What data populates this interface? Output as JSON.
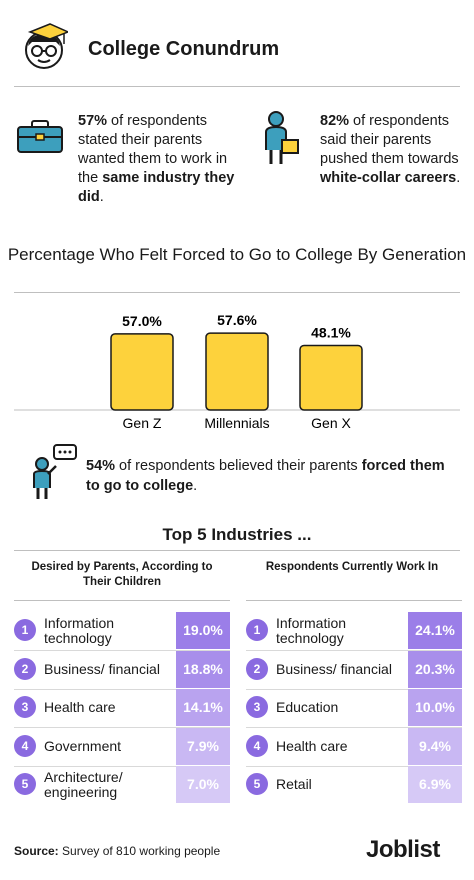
{
  "header": {
    "title": "College Conundrum"
  },
  "stats": [
    {
      "pct": "57%",
      "pre": " of respondents stated their parents wanted them to work in the ",
      "bold": "same industry they did",
      "post": "."
    },
    {
      "pct": "82%",
      "pre": " of respondents said their parents pushed them towards ",
      "bold": "white-collar careers",
      "post": "."
    }
  ],
  "chart_data": {
    "type": "bar",
    "title": "Percentage Who Felt Forced to Go to College By Generation",
    "categories": [
      "Gen Z",
      "Millennials",
      "Gen X"
    ],
    "values": [
      57.0,
      57.6,
      48.1
    ],
    "value_labels": [
      "57.0%",
      "57.6%",
      "48.1%"
    ],
    "ylim": [
      0,
      60
    ],
    "color": "#fdd23c",
    "grid": false
  },
  "callout": {
    "pct": "54%",
    "pre": " of respondents believed their parents ",
    "bold": "forced them to go to college",
    "post": "."
  },
  "industries": {
    "title": "Top 5 Industries ...",
    "left": {
      "heading": "Desired by Parents, According to Their Children",
      "rows": [
        {
          "rank": "1",
          "name": "Information technology",
          "pct": "19.0%",
          "value": 19.0
        },
        {
          "rank": "2",
          "name": "Business/ financial",
          "pct": "18.8%",
          "value": 18.8
        },
        {
          "rank": "3",
          "name": "Health care",
          "pct": "14.1%",
          "value": 14.1
        },
        {
          "rank": "4",
          "name": "Government",
          "pct": "7.9%",
          "value": 7.9
        },
        {
          "rank": "5",
          "name": "Architecture/ engineering",
          "pct": "7.0%",
          "value": 7.0
        }
      ]
    },
    "right": {
      "heading": "Respondents Currently Work In",
      "rows": [
        {
          "rank": "1",
          "name": "Information technology",
          "pct": "24.1%",
          "value": 24.1
        },
        {
          "rank": "2",
          "name": "Business/ financial",
          "pct": "20.3%",
          "value": 20.3
        },
        {
          "rank": "3",
          "name": "Education",
          "pct": "10.0%",
          "value": 10.0
        },
        {
          "rank": "4",
          "name": "Health care",
          "pct": "9.4%",
          "value": 9.4
        },
        {
          "rank": "5",
          "name": "Retail",
          "pct": "6.9%",
          "value": 6.9
        }
      ]
    }
  },
  "footer": {
    "source_label": "Source:",
    "source_text": " Survey of 810 working people",
    "brand": "Joblist"
  },
  "colors": {
    "accent": "#8a6ae0",
    "bar": "#fdd23c",
    "teal": "#3d9fbd"
  }
}
